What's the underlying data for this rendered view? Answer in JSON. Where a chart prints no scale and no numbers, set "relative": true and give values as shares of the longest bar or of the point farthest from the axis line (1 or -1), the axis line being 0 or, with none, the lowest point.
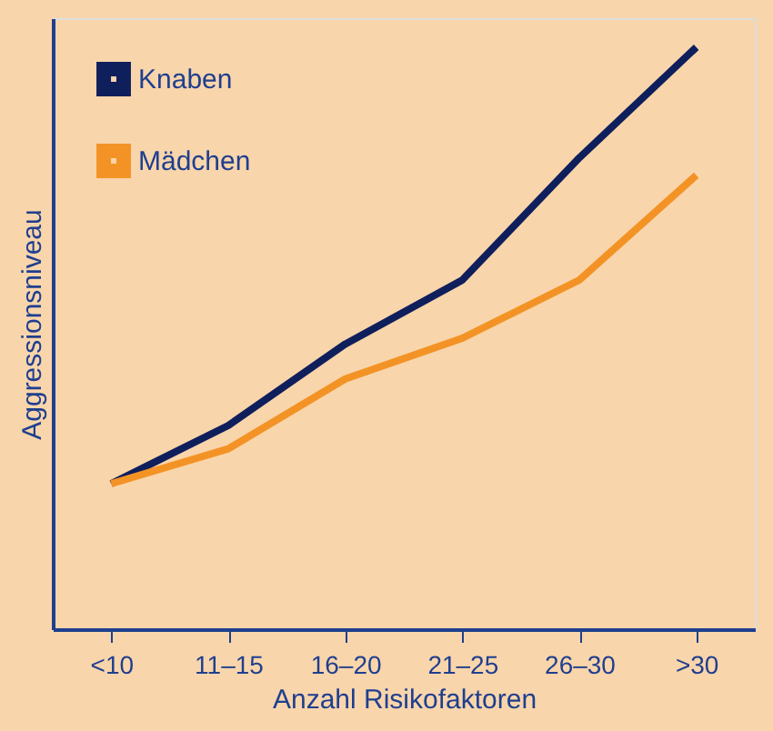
{
  "chart_data": {
    "type": "line",
    "relative": true,
    "xlabel": "Anzahl Risikofaktoren",
    "ylabel": "Aggressionsniveau",
    "categories": [
      "<10",
      "11–15",
      "16–20",
      "21–25",
      "26–30",
      ">30"
    ],
    "series": [
      {
        "name": "Knaben",
        "color": "#0f1f5c",
        "values": [
          0.25,
          0.35,
          0.49,
          0.6,
          0.81,
          1.0
        ]
      },
      {
        "name": "Mädchen",
        "color": "#f39325",
        "values": [
          0.25,
          0.31,
          0.43,
          0.5,
          0.6,
          0.78
        ]
      }
    ],
    "legend": "top left",
    "grid": false,
    "marker": "none",
    "line_style": "solid"
  }
}
